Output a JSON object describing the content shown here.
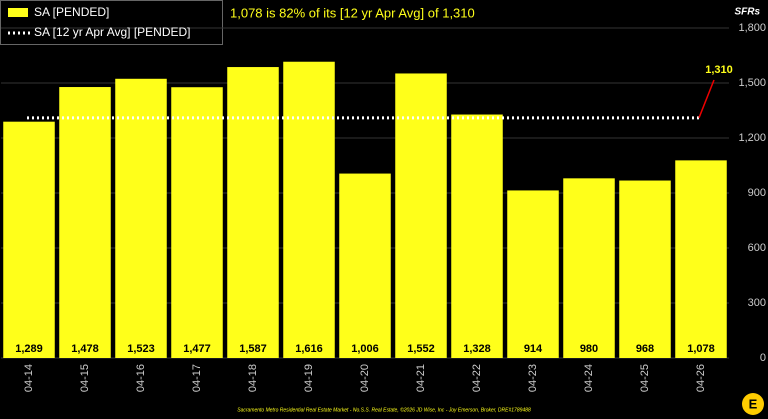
{
  "chart_data": {
    "type": "bar",
    "subtitle": "1,078 is 82% of its [12 yr Apr Avg] of 1,310",
    "y_axis_label": "SFRs",
    "footer": "Sacramento Metro Residential Real Estate Market - No.S.S. Real Estate, ©2026 JD Wise, Inc - Joy Emerson, Broker, DRE#1789488",
    "categories": [
      "04-14",
      "04-15",
      "04-16",
      "04-17",
      "04-18",
      "04-19",
      "04-20",
      "04-21",
      "04-22",
      "04-23",
      "04-24",
      "04-25",
      "04-26"
    ],
    "series": [
      {
        "name": "SA [PENDED]",
        "color": "#ffff1a",
        "values": [
          1289,
          1478,
          1523,
          1477,
          1587,
          1616,
          1006,
          1552,
          1328,
          914,
          980,
          968,
          1078
        ],
        "value_labels": [
          "1,289",
          "1,478",
          "1,523",
          "1,477",
          "1,587",
          "1,616",
          "1,006",
          "1,552",
          "1,328",
          "914",
          "980",
          "968",
          "1,078"
        ]
      }
    ],
    "average": {
      "name": "SA [12 yr Apr Avg] [PENDED]",
      "value": 1310,
      "value_label": "1,310",
      "color": "#ffffff"
    },
    "ylim": [
      0,
      1800
    ],
    "yticks": [
      0,
      300,
      600,
      900,
      {
        "value": 1200,
        "label": "1,200"
      },
      {
        "value": 1500,
        "label": "1,500"
      },
      {
        "value": 1800,
        "label": "1,800"
      }
    ],
    "grid": true
  }
}
